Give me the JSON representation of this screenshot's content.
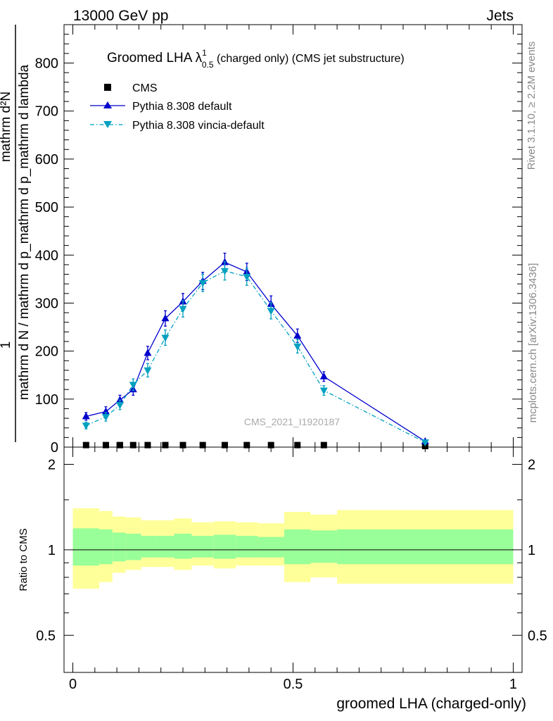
{
  "header": {
    "left": "13000 GeV pp",
    "right": "Jets"
  },
  "side_labels": {
    "rivet": "Rivet 3.1.10, ≥ 2.2M events",
    "mcplots": "mcplots.cern.ch [arXiv:1306.3436]"
  },
  "chart_data": [
    {
      "type": "line",
      "title_main": "Groomed LHA ",
      "title_lambda": "λ",
      "title_sup": "1",
      "title_sub": "0.5",
      "title_rest": " (charged only) (CMS jet substructure)",
      "watermark": "CMS_2021_I1920187",
      "ylabel_numerator": "1",
      "ylabel_denominator": "mathrm d N / mathrm d p_mathrm d p_mathrm d lambda",
      "ylabel_top": "mathrm d²N",
      "xlim": [
        -0.02,
        1.02
      ],
      "ylim": [
        0,
        880
      ],
      "yticks": [
        0,
        100,
        200,
        300,
        400,
        500,
        600,
        700,
        800
      ],
      "legend_position": "top-left",
      "series": [
        {
          "name": "CMS",
          "color": "#000000",
          "marker": "square",
          "x": [
            0.03,
            0.075,
            0.107,
            0.137,
            0.17,
            0.21,
            0.25,
            0.295,
            0.345,
            0.395,
            0.45,
            0.51,
            0.57,
            0.8
          ],
          "y": [
            2,
            2,
            2,
            2,
            2,
            2,
            2,
            2,
            2,
            2,
            2,
            2,
            2,
            0
          ]
        },
        {
          "name": "Pythia 8.308 default",
          "color": "#0000cc",
          "marker": "triangle-up",
          "line": "solid",
          "x": [
            0.03,
            0.075,
            0.107,
            0.137,
            0.17,
            0.21,
            0.25,
            0.295,
            0.345,
            0.395,
            0.45,
            0.51,
            0.57,
            0.8
          ],
          "y": [
            64,
            74,
            98,
            120,
            196,
            268,
            303,
            346,
            385,
            365,
            298,
            232,
            147,
            12
          ],
          "err": [
            8,
            10,
            10,
            12,
            14,
            16,
            17,
            18,
            19,
            18,
            17,
            14,
            10,
            3
          ]
        },
        {
          "name": "Pythia 8.308 vincia-default",
          "color": "#00a0c0",
          "marker": "triangle-down",
          "line": "dashdot",
          "x": [
            0.03,
            0.075,
            0.107,
            0.137,
            0.17,
            0.21,
            0.25,
            0.295,
            0.345,
            0.395,
            0.45,
            0.51,
            0.57,
            0.8
          ],
          "y": [
            45,
            63,
            88,
            130,
            160,
            228,
            288,
            342,
            367,
            355,
            284,
            210,
            118,
            10
          ],
          "err": [
            7,
            9,
            10,
            12,
            14,
            16,
            17,
            18,
            19,
            18,
            17,
            14,
            10,
            3
          ]
        }
      ]
    },
    {
      "type": "area",
      "ylabel": "Ratio to CMS",
      "xlabel": "groomed LHA (charged-only)",
      "xlim": [
        -0.02,
        1.02
      ],
      "ylim": [
        0.37,
        2.3
      ],
      "yticks": [
        0.5,
        1,
        2
      ],
      "ytick_labels": [
        "0.5",
        "1",
        "2"
      ],
      "xticks": [
        0,
        0.5,
        1
      ],
      "xtick_labels": [
        "0",
        "0.5",
        "1"
      ],
      "reference_line": 1,
      "bands": {
        "bin_edges": [
          0.0,
          0.06,
          0.09,
          0.12,
          0.155,
          0.19,
          0.23,
          0.27,
          0.32,
          0.37,
          0.42,
          0.48,
          0.54,
          0.6,
          1.0
        ],
        "yellow_color": "#ffff99",
        "green_color": "#99ff99",
        "yellow_lo": [
          0.73,
          0.77,
          0.83,
          0.85,
          0.87,
          0.87,
          0.85,
          0.88,
          0.86,
          0.88,
          0.88,
          0.77,
          0.8,
          0.76
        ],
        "yellow_hi": [
          1.4,
          1.37,
          1.31,
          1.3,
          1.27,
          1.27,
          1.29,
          1.25,
          1.26,
          1.25,
          1.24,
          1.36,
          1.33,
          1.38
        ],
        "green_lo": [
          0.88,
          0.89,
          0.91,
          0.92,
          0.94,
          0.94,
          0.93,
          0.94,
          0.93,
          0.94,
          0.94,
          0.89,
          0.9,
          0.89
        ],
        "green_hi": [
          1.19,
          1.18,
          1.15,
          1.14,
          1.12,
          1.12,
          1.14,
          1.12,
          1.13,
          1.12,
          1.11,
          1.18,
          1.17,
          1.18
        ]
      }
    }
  ]
}
